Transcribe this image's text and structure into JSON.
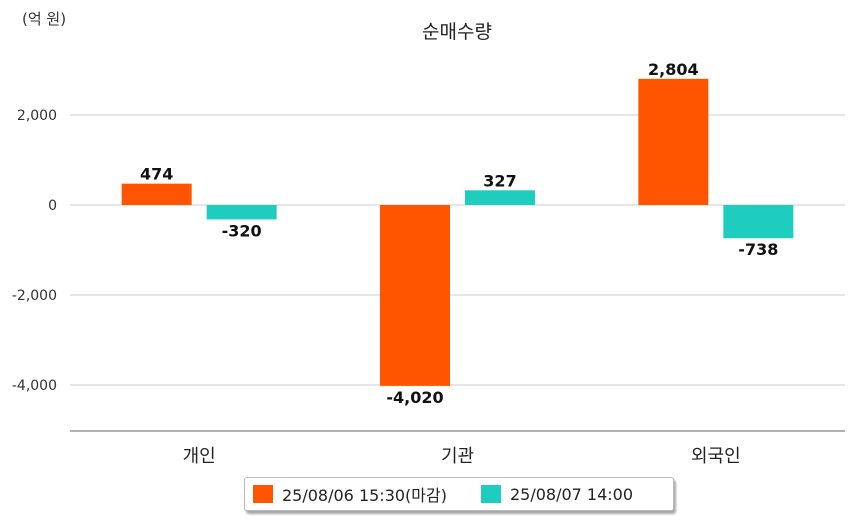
{
  "chart_data": {
    "type": "bar",
    "title": "순매수량",
    "unit_label": "(억 원)",
    "categories": [
      "개인",
      "기관",
      "외국인"
    ],
    "series": [
      {
        "name": "25/08/06 15:30(마감)",
        "color": "#ff5500",
        "values": [
          474,
          -4020,
          2804
        ]
      },
      {
        "name": "25/08/07 14:00",
        "color": "#1ecdbd",
        "values": [
          -320,
          327,
          -738
        ]
      }
    ],
    "data_labels": [
      [
        "474",
        "-4,020",
        "2,804"
      ],
      [
        "-320",
        "327",
        "-738"
      ]
    ],
    "yticks": [
      2000,
      0,
      -2000,
      -4000
    ],
    "ytick_labels": [
      "2,000",
      "0",
      "-2,000",
      "-4,000"
    ],
    "ylim": [
      -5000,
      3500
    ],
    "grid": true,
    "legend": "bottom-center"
  }
}
